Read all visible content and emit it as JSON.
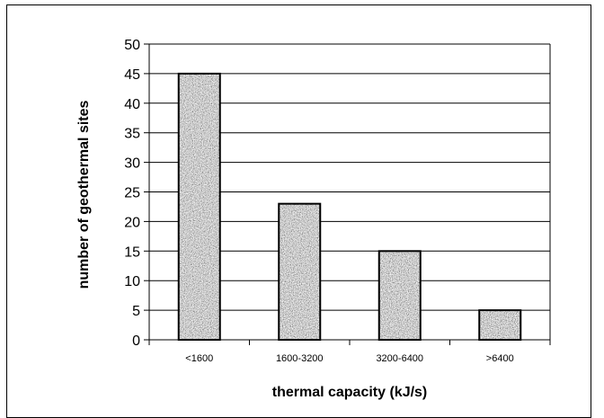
{
  "chart_data": {
    "type": "bar",
    "title": "",
    "xlabel": "thermal capacity (kJ/s)",
    "ylabel": "number of geothermal sites",
    "categories": [
      "<1600",
      "1600-3200",
      "3200-6400",
      ">6400"
    ],
    "values": [
      45,
      23,
      15,
      5
    ],
    "ylim": [
      0,
      50
    ],
    "yticks": [
      0,
      5,
      10,
      15,
      20,
      25,
      30,
      35,
      40,
      45,
      50
    ],
    "grid": true,
    "legend": "none",
    "bar_fill": "granite-texture",
    "colors": {
      "grid": "#000000",
      "bar_stroke": "#000000",
      "background": "#ffffff"
    }
  }
}
